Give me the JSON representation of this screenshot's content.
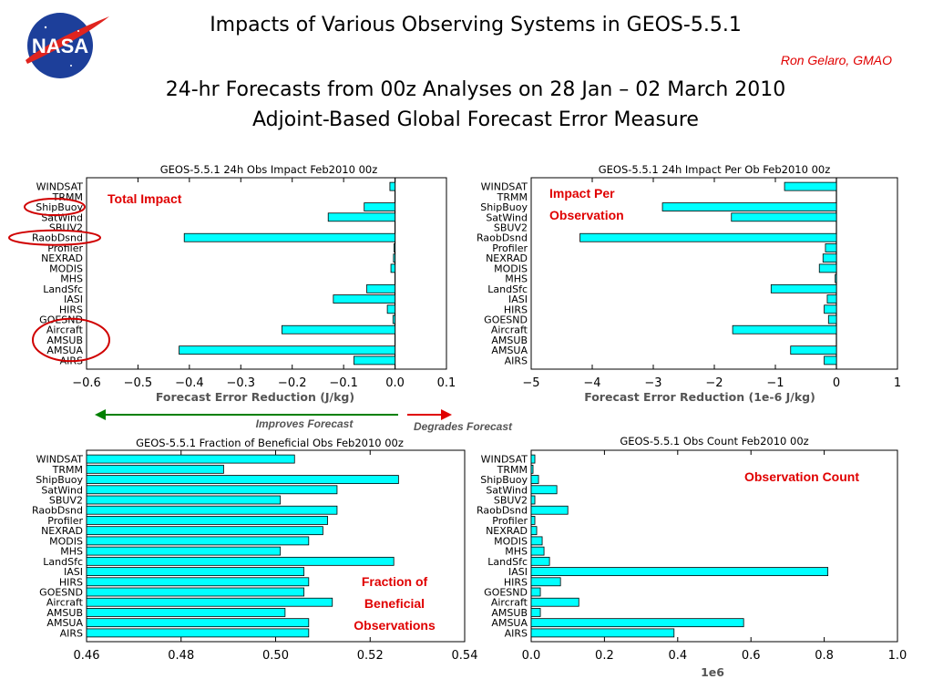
{
  "header": {
    "title": "Impacts of Various Observing Systems in GEOS-5.5.1",
    "author": "Ron Gelaro, GMAO",
    "subtitle1": "24-hr Forecasts from 00z Analyses on 28 Jan – 02 March 2010",
    "subtitle2": "Adjoint-Based Global Forecast Error Measure",
    "logo_text": "NASA"
  },
  "colors": {
    "bar": "#00ffff",
    "bar_edge": "#000000",
    "annotation": "#e00000",
    "improve_arrow": "#008000",
    "degrade_arrow": "#e00000"
  },
  "arrows": {
    "improves": "Improves Forecast",
    "degrades": "Degrades Forecast"
  },
  "chart_data": [
    {
      "type": "bar",
      "orientation": "horizontal",
      "title": "GEOS-5.5.1 24h Obs Impact Feb2010 00z",
      "annotation": "Total Impact",
      "xlabel": "Forecast Error Reduction (J/kg)",
      "categories": [
        "WINDSAT",
        "TRMM",
        "ShipBuoy",
        "SatWind",
        "SBUV2",
        "RaobDsnd",
        "Profiler",
        "NEXRAD",
        "MODIS",
        "MHS",
        "LandSfc",
        "IASI",
        "HIRS",
        "GOESND",
        "Aircraft",
        "AMSUB",
        "AMSUA",
        "AIRS"
      ],
      "values": [
        -0.01,
        0,
        -0.06,
        -0.13,
        0,
        -0.41,
        -0.002,
        -0.003,
        -0.008,
        0,
        -0.055,
        -0.12,
        -0.015,
        -0.004,
        -0.22,
        0,
        -0.42,
        -0.08
      ],
      "xlim": [
        -0.6,
        0.1
      ],
      "xticks": [
        "−0.6",
        "−0.5",
        "−0.4",
        "−0.3",
        "−0.2",
        "−0.1",
        "0.0",
        "0.1"
      ],
      "circled": [
        "ShipBuoy",
        "RaobDsnd",
        "Aircraft",
        "AMSUB",
        "AMSUA"
      ]
    },
    {
      "type": "bar",
      "orientation": "horizontal",
      "title": "GEOS-5.5.1 24h Impact Per Ob Feb2010 00z",
      "annotation": [
        "Impact Per",
        "Observation"
      ],
      "xlabel": "Forecast Error Reduction (1e-6 J/kg)",
      "categories": [
        "WINDSAT",
        "TRMM",
        "ShipBuoy",
        "SatWind",
        "SBUV2",
        "RaobDsnd",
        "Profiler",
        "NEXRAD",
        "MODIS",
        "MHS",
        "LandSfc",
        "IASI",
        "HIRS",
        "GOESND",
        "Aircraft",
        "AMSUB",
        "AMSUA",
        "AIRS"
      ],
      "values": [
        -0.85,
        0,
        -2.85,
        -1.72,
        0,
        -4.2,
        -0.18,
        -0.22,
        -0.28,
        -0.02,
        -1.07,
        -0.15,
        -0.2,
        -0.13,
        -1.7,
        0,
        -0.75,
        -0.2
      ],
      "xlim": [
        -5,
        1
      ],
      "xticks": [
        "−5",
        "−4",
        "−3",
        "−2",
        "−1",
        "0",
        "1"
      ]
    },
    {
      "type": "bar",
      "orientation": "horizontal",
      "title": "GEOS-5.5.1 Fraction of Beneficial Obs Feb2010 00z",
      "annotation": [
        "Fraction of",
        "Beneficial",
        "Observations"
      ],
      "xlabel": "",
      "categories": [
        "WINDSAT",
        "TRMM",
        "ShipBuoy",
        "SatWind",
        "SBUV2",
        "RaobDsnd",
        "Profiler",
        "NEXRAD",
        "MODIS",
        "MHS",
        "LandSfc",
        "IASI",
        "HIRS",
        "GOESND",
        "Aircraft",
        "AMSUB",
        "AMSUA",
        "AIRS"
      ],
      "values": [
        0.504,
        0.489,
        0.526,
        0.513,
        0.501,
        0.513,
        0.511,
        0.51,
        0.507,
        0.501,
        0.525,
        0.506,
        0.507,
        0.506,
        0.512,
        0.502,
        0.507,
        0.507
      ],
      "xlim": [
        0.46,
        0.54
      ],
      "xticks": [
        "0.46",
        "0.48",
        "0.50",
        "0.52",
        "0.54"
      ]
    },
    {
      "type": "bar",
      "orientation": "horizontal",
      "title": "GEOS-5.5.1 Obs Count Feb2010 00z",
      "annotation": "Observation Count",
      "xlabel": "1e6",
      "categories": [
        "WINDSAT",
        "TRMM",
        "ShipBuoy",
        "SatWind",
        "SBUV2",
        "RaobDsnd",
        "Profiler",
        "NEXRAD",
        "MODIS",
        "MHS",
        "LandSfc",
        "IASI",
        "HIRS",
        "GOESND",
        "Aircraft",
        "AMSUB",
        "AMSUA",
        "AIRS"
      ],
      "values": [
        0.01,
        0.005,
        0.02,
        0.07,
        0.01,
        0.1,
        0.01,
        0.015,
        0.03,
        0.035,
        0.05,
        0.81,
        0.08,
        0.025,
        0.13,
        0.025,
        0.58,
        0.39
      ],
      "xlim": [
        0.0,
        1.0
      ],
      "xticks": [
        "0.0",
        "0.2",
        "0.4",
        "0.6",
        "0.8",
        "1.0"
      ]
    }
  ]
}
